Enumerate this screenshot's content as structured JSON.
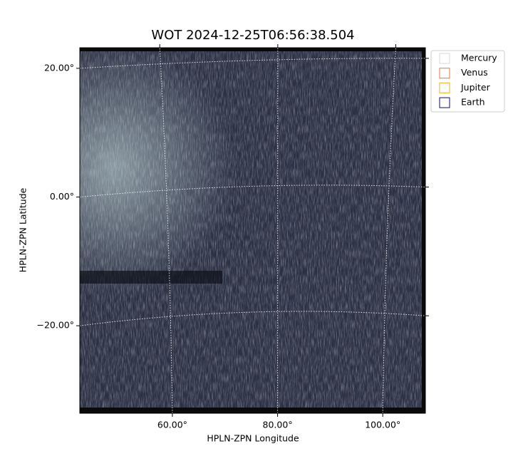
{
  "chart_data": {
    "type": "image",
    "title": "WOT 2024-12-25T06:56:38.504",
    "x_label": "HPLN-ZPN Longitude",
    "y_label": "HPLN-ZPN Latitude",
    "xlim": [
      42.4,
      108.1
    ],
    "ylim": [
      -33.6,
      23.2
    ],
    "xticks": [
      {
        "value": 60,
        "label": "60.00°"
      },
      {
        "value": 80,
        "label": "80.00°"
      },
      {
        "value": 100,
        "label": "100.00°"
      }
    ],
    "yticks": [
      {
        "value": -20,
        "label": "−20.00°"
      },
      {
        "value": 0,
        "label": "0.00°"
      },
      {
        "value": 20,
        "label": "20.00°"
      }
    ],
    "grid": true,
    "legend": "upper right outside",
    "series": [
      {
        "name": "Mercury",
        "color": "#d9d9d9"
      },
      {
        "name": "Venus",
        "color": "#e07b39"
      },
      {
        "name": "Jupiter",
        "color": "#e3b32a"
      },
      {
        "name": "Earth",
        "color": "#0b0b7a"
      }
    ]
  }
}
